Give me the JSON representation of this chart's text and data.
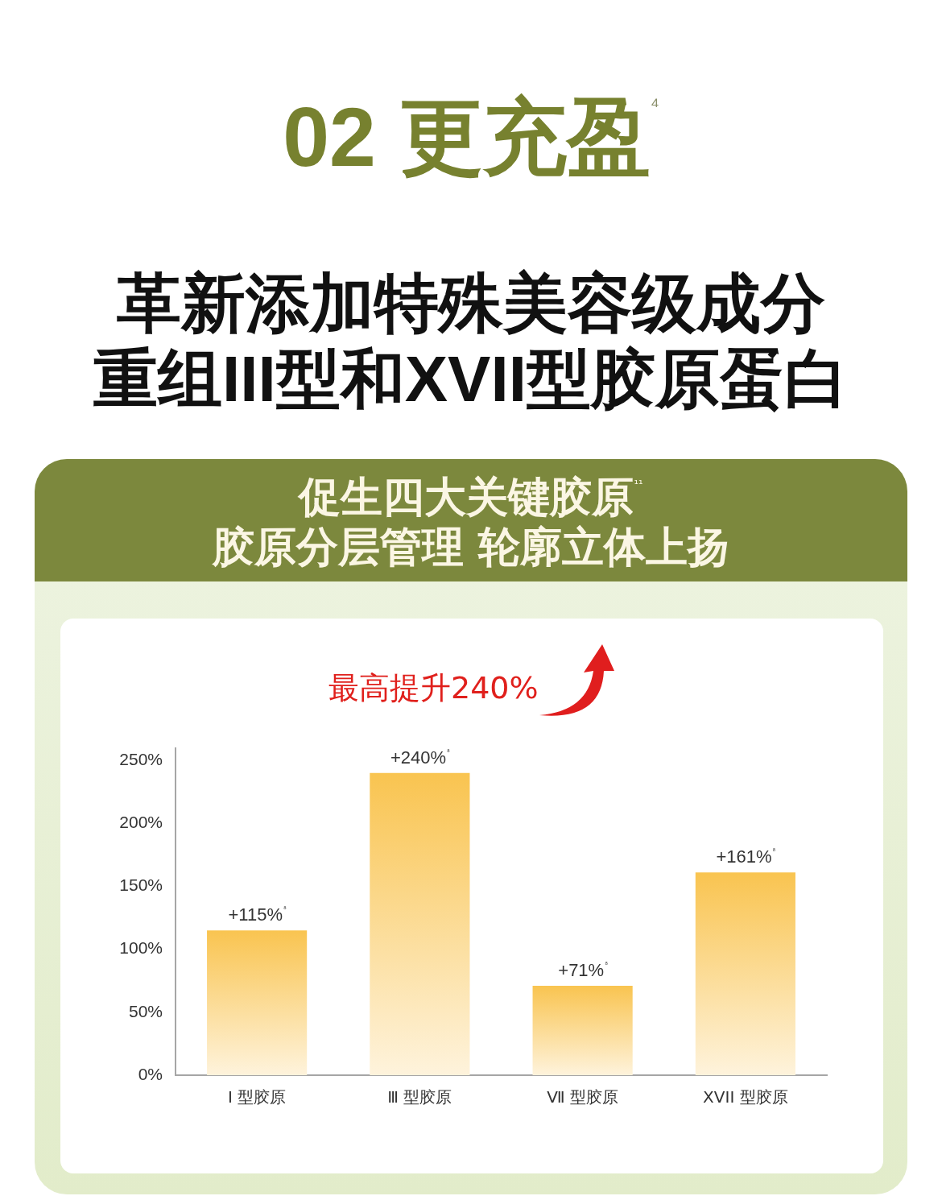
{
  "chart_data": {
    "type": "bar",
    "title": "02 更充盈⁴",
    "subtitle": "革新添加特殊美容级成分重组III型和XVII型胶原蛋白",
    "annotations": [
      "促生四大关键胶原¹¹",
      "胶原分层管理 轮廓立体上扬",
      "最高提升240%"
    ],
    "categories": [
      "Ⅰ 型胶原",
      "Ⅲ 型胶原",
      "Ⅶ 型胶原",
      "XVII 型胶原"
    ],
    "values": [
      115,
      240,
      71,
      161
    ],
    "color": "#f9c450",
    "value_labels": [
      "+115%⁸",
      "+240%⁸",
      "+71%⁸",
      "+161%⁸"
    ],
    "ylim": [
      0,
      260
    ],
    "yticks": [
      {
        "value": 0,
        "label": "0%"
      },
      {
        "value": 50,
        "label": "50%"
      },
      {
        "value": 100,
        "label": "100%"
      },
      {
        "value": 150,
        "label": "150%"
      },
      {
        "value": 200,
        "label": "200%"
      },
      {
        "value": 250,
        "label": "250%"
      }
    ]
  }
}
